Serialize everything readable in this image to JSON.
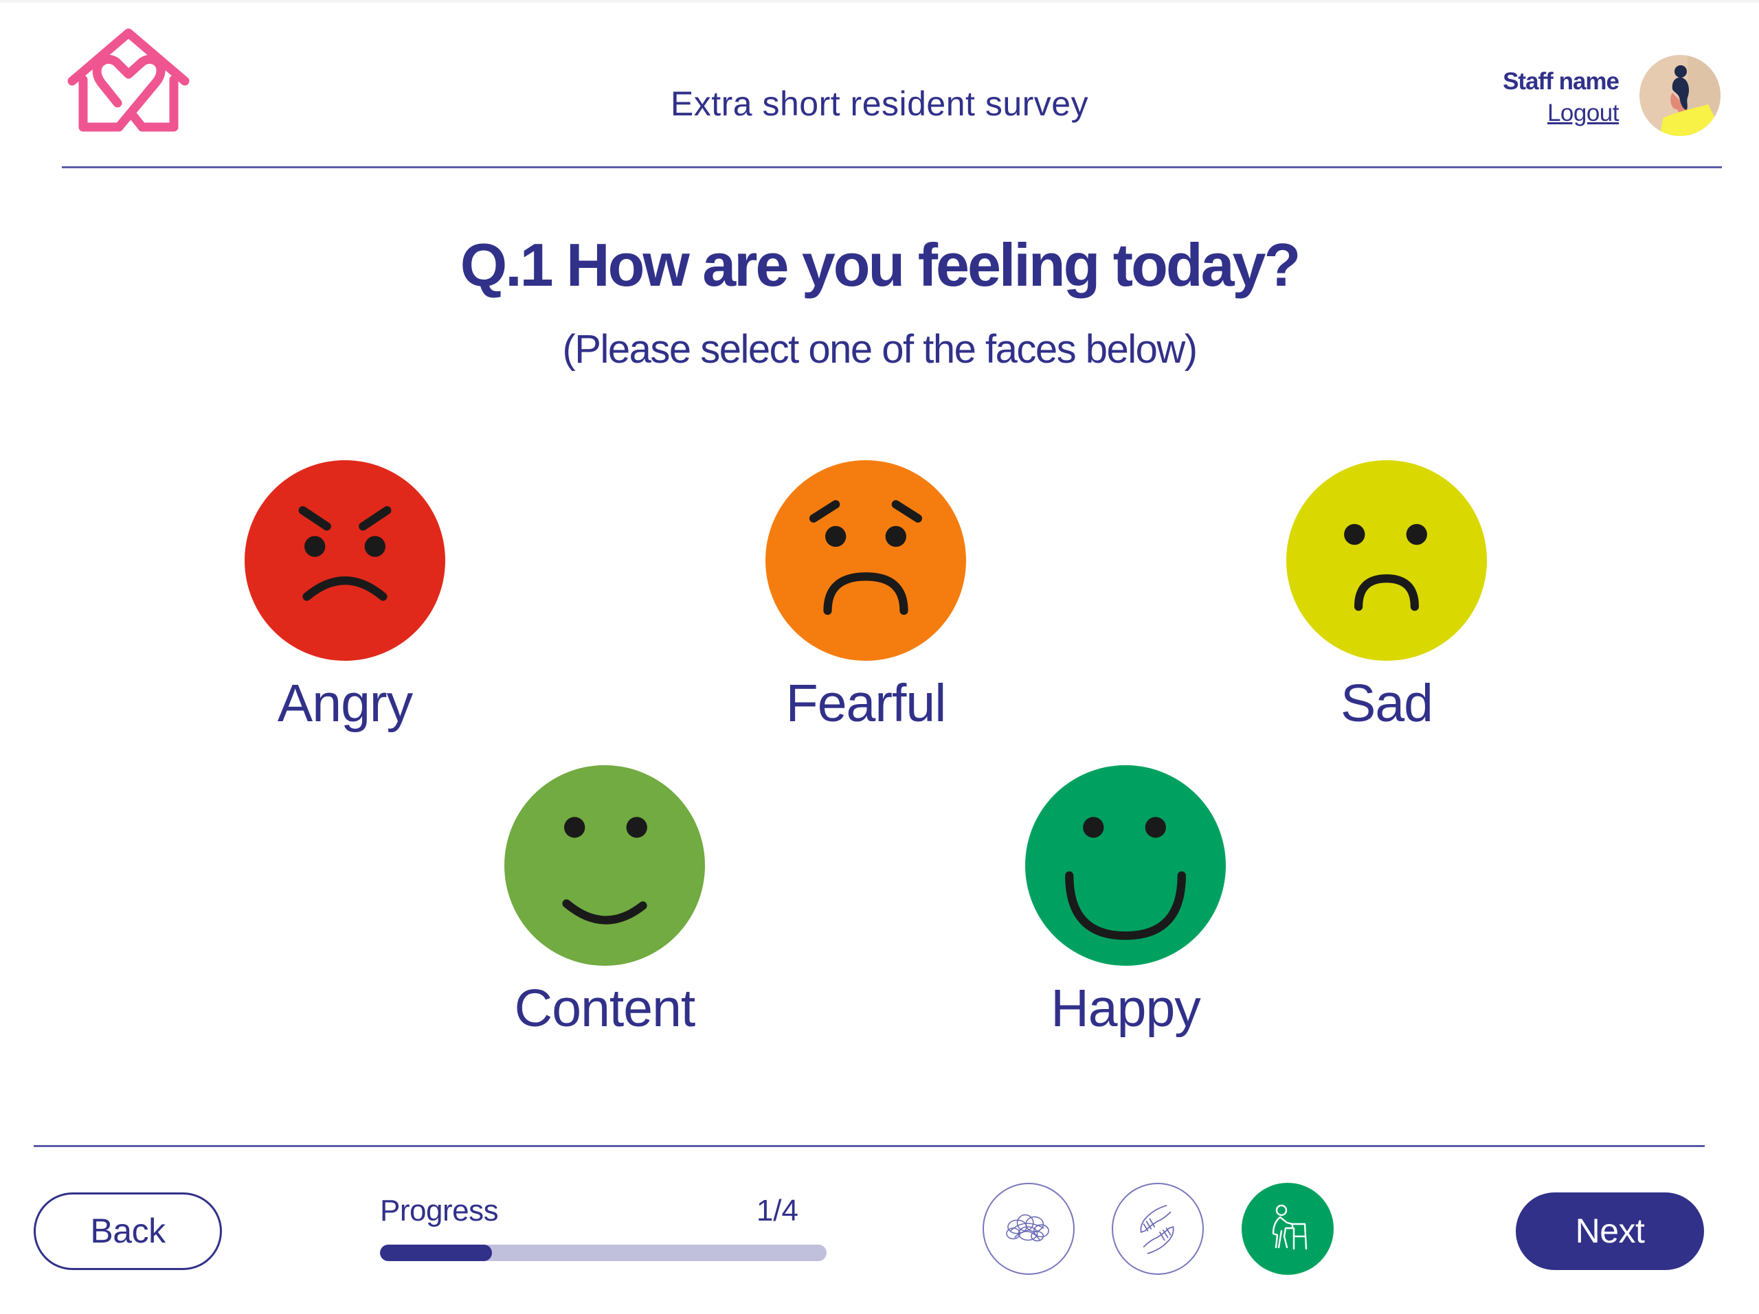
{
  "header": {
    "app_title": "Extra short resident survey",
    "staff_name": "Staff name",
    "logout_label": "Logout",
    "logo_icon": "house-heart-icon",
    "avatar_icon": "staff-avatar"
  },
  "question": {
    "title": "Q.1 How are you feeling today?",
    "instruction": "(Please select one of the faces below)"
  },
  "faces": [
    {
      "label": "Angry",
      "color": "#e0291b",
      "icon": "angry-face-icon"
    },
    {
      "label": "Fearful",
      "color": "#f57d0f",
      "icon": "fearful-face-icon"
    },
    {
      "label": "Sad",
      "color": "#d9d800",
      "icon": "sad-face-icon"
    },
    {
      "label": "Content",
      "color": "#72ab41",
      "icon": "content-face-icon"
    },
    {
      "label": "Happy",
      "color": "#00a160",
      "icon": "happy-face-icon"
    }
  ],
  "footer": {
    "back_label": "Back",
    "next_label": "Next",
    "progress": {
      "label": "Progress",
      "count": "1/4",
      "current": 1,
      "total": 4,
      "fill_color": "#31318a",
      "track_color": "#c0c0dc"
    },
    "categories": [
      {
        "icon": "tangled-mind-icon",
        "state": "inactive"
      },
      {
        "icon": "caring-hands-icon",
        "state": "inactive"
      },
      {
        "icon": "person-with-walker-icon",
        "state": "active",
        "color": "#00a160"
      }
    ]
  },
  "colors": {
    "brand_navy": "#31318a",
    "brand_pink": "#ef5591",
    "divider": "#5a5aa8"
  }
}
